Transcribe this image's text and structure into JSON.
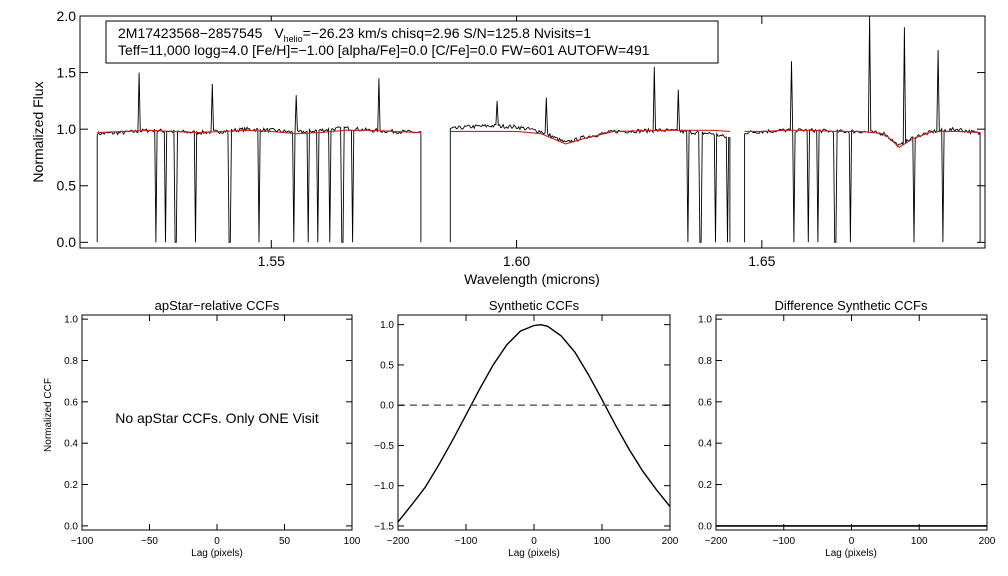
{
  "chart_data": [
    {
      "id": "spectrum",
      "type": "line",
      "title": "",
      "xlabel": "Wavelength (microns)",
      "ylabel": "Normalized Flux",
      "xlim": [
        1.511,
        1.6955
      ],
      "ylim": [
        -0.05,
        2.0
      ],
      "xticks": [
        {
          "value": 1.55,
          "label": "1.55"
        },
        {
          "value": 1.6,
          "label": "1.60"
        },
        {
          "value": 1.65,
          "label": "1.65"
        }
      ],
      "yticks": [
        {
          "value": 0.0,
          "label": "0.0"
        },
        {
          "value": 0.5,
          "label": "0.5"
        },
        {
          "value": 1.0,
          "label": "1.0"
        },
        {
          "value": 1.5,
          "label": "1.5"
        },
        {
          "value": 2.0,
          "label": "2.0"
        }
      ],
      "annotation": {
        "line1_star": "2M17423568−2857545",
        "line1_v": "V",
        "line1_v_sub": "helio",
        "line1_rest": "=−26.23 km/s  chisq=2.96  S/N=125.8  Nvisits=1",
        "line2": "Teff=11,000 logg=4.0 [Fe/H]=−1.00 [alpha/Fe]=0.0 [C/Fe]=0.0 FW=601 AUTOFW=491"
      },
      "chips": [
        [
          1.5145,
          1.5805
        ],
        [
          1.5865,
          1.6435
        ],
        [
          1.6465,
          1.6945
        ]
      ],
      "series": [
        {
          "name": "observed",
          "color": "#000000",
          "continuum": [
            [
              1.5145,
              0.96
            ],
            [
              1.52,
              0.97
            ],
            [
              1.525,
              0.99
            ],
            [
              1.53,
              0.98
            ],
            [
              1.535,
              0.97
            ],
            [
              1.54,
              0.98
            ],
            [
              1.545,
              1.0
            ],
            [
              1.55,
              0.99
            ],
            [
              1.555,
              0.97
            ],
            [
              1.56,
              0.99
            ],
            [
              1.565,
              1.01
            ],
            [
              1.57,
              0.99
            ],
            [
              1.575,
              0.98
            ],
            [
              1.5805,
              0.97
            ],
            [
              1.5865,
              1.0
            ],
            [
              1.59,
              1.02
            ],
            [
              1.595,
              1.03
            ],
            [
              1.6,
              1.02
            ],
            [
              1.605,
              0.98
            ],
            [
              1.61,
              0.88
            ],
            [
              1.614,
              0.93
            ],
            [
              1.62,
              0.98
            ],
            [
              1.63,
              0.99
            ],
            [
              1.64,
              0.96
            ],
            [
              1.6435,
              0.92
            ],
            [
              1.6465,
              0.97
            ],
            [
              1.65,
              0.98
            ],
            [
              1.655,
              0.99
            ],
            [
              1.66,
              0.99
            ],
            [
              1.665,
              0.98
            ],
            [
              1.67,
              0.98
            ],
            [
              1.675,
              0.96
            ],
            [
              1.678,
              0.85
            ],
            [
              1.681,
              0.93
            ],
            [
              1.685,
              0.98
            ],
            [
              1.69,
              1.0
            ],
            [
              1.6945,
              0.96
            ]
          ],
          "absorption_dips": [
            1.5265,
            1.5285,
            1.5305,
            1.5345,
            1.5415,
            1.5475,
            1.5545,
            1.5575,
            1.5595,
            1.562,
            1.5645,
            1.5665,
            1.635,
            1.6375,
            1.6405,
            1.643,
            1.6565,
            1.6595,
            1.6615,
            1.665,
            1.668,
            1.681,
            1.687
          ],
          "emission_spikes": [
            [
              1.523,
              1.5
            ],
            [
              1.538,
              1.4
            ],
            [
              1.555,
              1.3
            ],
            [
              1.572,
              1.45
            ],
            [
              1.596,
              1.25
            ],
            [
              1.606,
              1.28
            ],
            [
              1.628,
              1.55
            ],
            [
              1.633,
              1.35
            ],
            [
              1.656,
              1.6
            ],
            [
              1.672,
              2.0
            ],
            [
              1.679,
              1.9
            ],
            [
              1.686,
              1.7
            ]
          ]
        },
        {
          "name": "synthetic",
          "color": "#cc2222",
          "points": [
            [
              1.5145,
              0.97
            ],
            [
              1.52,
              0.98
            ],
            [
              1.525,
              0.99
            ],
            [
              1.53,
              0.98
            ],
            [
              1.535,
              0.97
            ],
            [
              1.54,
              0.98
            ],
            [
              1.545,
              0.99
            ],
            [
              1.55,
              0.98
            ],
            [
              1.555,
              0.96
            ],
            [
              1.56,
              0.97
            ],
            [
              1.565,
              0.99
            ],
            [
              1.57,
              0.99
            ],
            [
              1.575,
              0.98
            ],
            [
              1.5805,
              0.97
            ],
            [
              1.5865,
              0.98
            ],
            [
              1.59,
              0.98
            ],
            [
              1.595,
              0.98
            ],
            [
              1.6,
              0.98
            ],
            [
              1.605,
              0.96
            ],
            [
              1.61,
              0.87
            ],
            [
              1.614,
              0.92
            ],
            [
              1.62,
              0.98
            ],
            [
              1.63,
              0.99
            ],
            [
              1.64,
              0.99
            ],
            [
              1.6435,
              0.98
            ],
            [
              1.6465,
              0.98
            ],
            [
              1.65,
              0.98
            ],
            [
              1.655,
              0.99
            ],
            [
              1.66,
              0.99
            ],
            [
              1.665,
              0.98
            ],
            [
              1.67,
              0.98
            ],
            [
              1.675,
              0.96
            ],
            [
              1.678,
              0.84
            ],
            [
              1.681,
              0.92
            ],
            [
              1.685,
              0.98
            ],
            [
              1.69,
              0.98
            ],
            [
              1.6945,
              0.97
            ]
          ]
        }
      ]
    },
    {
      "id": "apstar-ccf",
      "type": "line",
      "title": "apStar−relative CCFs",
      "xlabel": "Lag (pixels)",
      "ylabel": "Normalized CCF",
      "xlim": [
        -100,
        100
      ],
      "ylim": [
        -0.02,
        1.02
      ],
      "xticks": [
        {
          "value": -100,
          "label": "−100"
        },
        {
          "value": -50,
          "label": "−50"
        },
        {
          "value": 0,
          "label": "0"
        },
        {
          "value": 50,
          "label": "50"
        },
        {
          "value": 100,
          "label": "100"
        }
      ],
      "yticks": [
        {
          "value": 0.0,
          "label": "0.0"
        },
        {
          "value": 0.2,
          "label": "0.2"
        },
        {
          "value": 0.4,
          "label": "0.4"
        },
        {
          "value": 0.6,
          "label": "0.6"
        },
        {
          "value": 0.8,
          "label": "0.8"
        },
        {
          "value": 1.0,
          "label": "1.0"
        }
      ],
      "message": "No apStar CCFs.  Only ONE Visit",
      "series": []
    },
    {
      "id": "synthetic-ccf",
      "type": "line",
      "title": "Synthetic CCFs",
      "xlabel": "Lag (pixels)",
      "ylabel": "",
      "xlim": [
        -200,
        200
      ],
      "ylim": [
        -1.55,
        1.12
      ],
      "xticks": [
        {
          "value": -200,
          "label": "−200"
        },
        {
          "value": -100,
          "label": "−100"
        },
        {
          "value": 0,
          "label": "0"
        },
        {
          "value": 100,
          "label": "100"
        },
        {
          "value": 200,
          "label": "200"
        }
      ],
      "yticks": [
        {
          "value": -1.5,
          "label": "−1.5"
        },
        {
          "value": -1.0,
          "label": "−1.0"
        },
        {
          "value": -0.5,
          "label": "−0.5"
        },
        {
          "value": 0.0,
          "label": "0.0"
        },
        {
          "value": 0.5,
          "label": "0.5"
        },
        {
          "value": 1.0,
          "label": "1.0"
        }
      ],
      "series": [
        {
          "name": "ccf",
          "color": "#000000",
          "x": [
            -200,
            -180,
            -160,
            -140,
            -120,
            -100,
            -80,
            -60,
            -40,
            -20,
            0,
            10,
            20,
            40,
            60,
            80,
            100,
            120,
            140,
            160,
            180,
            200
          ],
          "y": [
            -1.45,
            -1.24,
            -1.02,
            -0.74,
            -0.44,
            -0.12,
            0.2,
            0.5,
            0.75,
            0.92,
            0.99,
            1.0,
            0.98,
            0.86,
            0.66,
            0.38,
            0.07,
            -0.25,
            -0.55,
            -0.82,
            -1.05,
            -1.26
          ]
        },
        {
          "name": "zero",
          "color": "#555555",
          "dashed": true,
          "x": [
            -200,
            200
          ],
          "y": [
            0,
            0
          ]
        }
      ]
    },
    {
      "id": "difference-ccf",
      "type": "line",
      "title": "Difference Synthetic CCFs",
      "xlabel": "Lag (pixels)",
      "ylabel": "",
      "xlim": [
        -200,
        200
      ],
      "ylim": [
        -0.02,
        1.02
      ],
      "xticks": [
        {
          "value": -200,
          "label": "−200"
        },
        {
          "value": -100,
          "label": "−100"
        },
        {
          "value": 0,
          "label": "0"
        },
        {
          "value": 100,
          "label": "100"
        },
        {
          "value": 200,
          "label": "200"
        }
      ],
      "yticks": [
        {
          "value": 0.0,
          "label": "0.0"
        },
        {
          "value": 0.2,
          "label": "0.2"
        },
        {
          "value": 0.4,
          "label": "0.4"
        },
        {
          "value": 0.6,
          "label": "0.6"
        },
        {
          "value": 0.8,
          "label": "0.8"
        },
        {
          "value": 1.0,
          "label": "1.0"
        }
      ],
      "series": [
        {
          "name": "difference",
          "color": "#000000",
          "x": [
            -200,
            200
          ],
          "y": [
            0.0,
            0.0
          ]
        }
      ]
    }
  ]
}
